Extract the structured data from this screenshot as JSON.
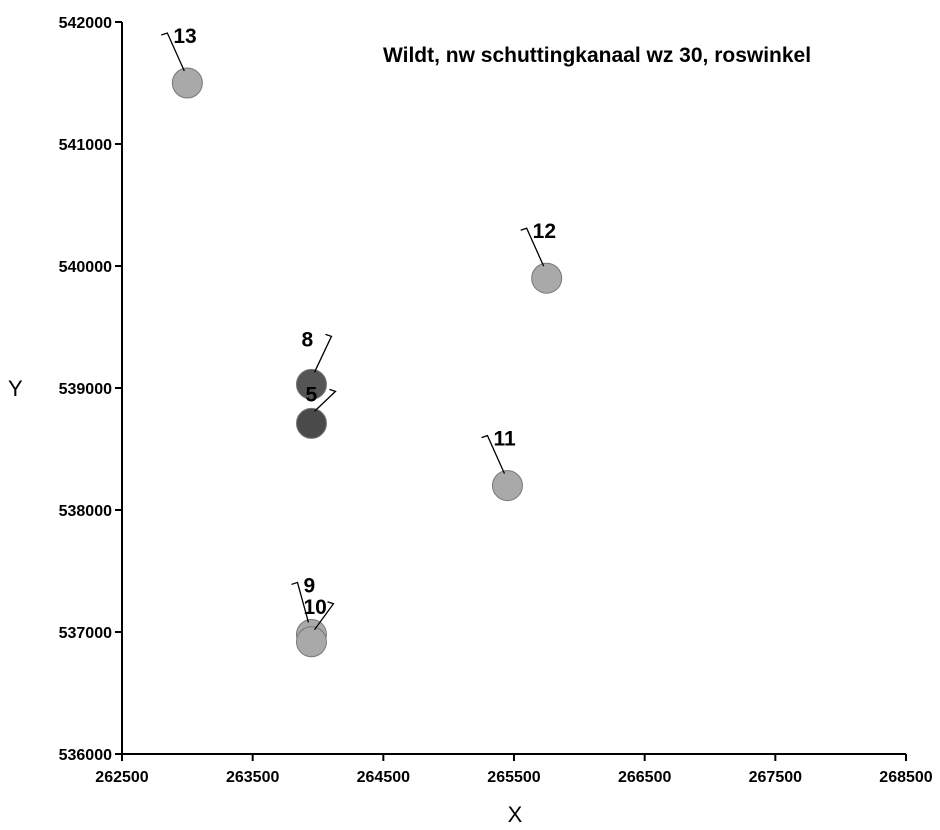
{
  "chart_data": {
    "type": "scatter",
    "title": "Wildt, nw schuttingkanaal wz 30, roswinkel",
    "xlabel": "X",
    "ylabel": "Y",
    "xlim": [
      262500,
      268500
    ],
    "ylim": [
      536000,
      542000
    ],
    "x_ticks": [
      "262500",
      "263500",
      "264500",
      "265500",
      "266500",
      "267500",
      "268500"
    ],
    "y_ticks": [
      "536000",
      "537000",
      "538000",
      "539000",
      "540000",
      "541000",
      "542000"
    ],
    "grid": false,
    "points": [
      {
        "label": "13",
        "x": 263000,
        "y": 541500,
        "color": "#a9a9a9"
      },
      {
        "label": "12",
        "x": 265750,
        "y": 539900,
        "color": "#a9a9a9"
      },
      {
        "label": "11",
        "x": 265450,
        "y": 538200,
        "color": "#a9a9a9"
      },
      {
        "label": "8",
        "x": 263950,
        "y": 539030,
        "color": "#555555"
      },
      {
        "label": "5",
        "x": 263950,
        "y": 538710,
        "color": "#4a4a4a"
      },
      {
        "label": "9",
        "x": 263950,
        "y": 536980,
        "color": "#a9a9a9"
      },
      {
        "label": "10",
        "x": 263950,
        "y": 536920,
        "color": "#a9a9a9"
      }
    ]
  }
}
